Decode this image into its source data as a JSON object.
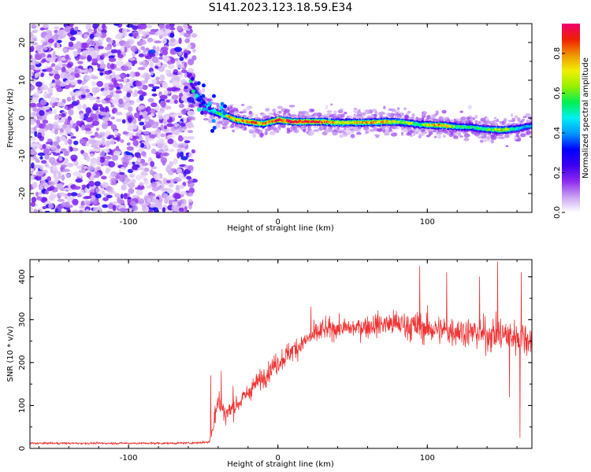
{
  "title": "S141.2023.123.18.59.E34",
  "chart_data": [
    {
      "type": "heatmap",
      "xlabel": "Height of straight line (km)",
      "ylabel": "Frequency (Hz)",
      "xlim": [
        -166,
        170
      ],
      "ylim": [
        -25,
        25
      ],
      "xticks": [
        -100,
        0,
        100
      ],
      "yticks": [
        -20,
        -10,
        0,
        10,
        20
      ],
      "colorbar": {
        "label": "Normalized spectral amplitude",
        "range": [
          0,
          0.95
        ],
        "ticks": [
          "0.0",
          "0.2",
          "0.4",
          "0.6",
          "0.8"
        ],
        "tick_values": [
          0.0,
          0.2,
          0.4,
          0.6,
          0.8
        ],
        "colormap": [
          "#ffffff",
          "#c8a0f0",
          "#8c28f0",
          "#3c00f0",
          "#0000ff",
          "#0096ff",
          "#00f0f0",
          "#00f050",
          "#96f000",
          "#f0f000",
          "#f09600",
          "#f01e00",
          "#f0006e"
        ]
      },
      "noise_region_x": [
        -166,
        -56
      ],
      "ridge": {
        "x": [
          -58,
          -55,
          -50,
          -46,
          -42,
          -38,
          -34,
          -28,
          -20,
          -10,
          0,
          10,
          20,
          30,
          40,
          50,
          60,
          70,
          80,
          90,
          95,
          100,
          110,
          120,
          130,
          140,
          150,
          160,
          170
        ],
        "f": [
          9,
          7,
          4,
          2,
          1.5,
          1,
          0.5,
          -0.5,
          -1,
          -1.5,
          -0.5,
          -1,
          -1,
          -1,
          -1.2,
          -1.2,
          -1.2,
          -1,
          -1,
          -1.5,
          -1.8,
          -1.8,
          -2,
          -2.3,
          -2.5,
          -3,
          -3.2,
          -2.8,
          -2
        ],
        "amp": [
          0.25,
          0.35,
          0.45,
          0.5,
          0.55,
          0.6,
          0.75,
          0.8,
          0.85,
          0.85,
          0.9,
          0.95,
          0.95,
          0.9,
          0.75,
          0.75,
          0.8,
          0.8,
          0.7,
          0.65,
          0.6,
          0.75,
          0.8,
          0.6,
          0.55,
          0.6,
          0.75,
          0.5,
          0.45
        ]
      }
    },
    {
      "type": "line",
      "xlabel": "Height of straight line (km)",
      "ylabel": "SNR (10 * v/v)",
      "xlim": [
        -166,
        170
      ],
      "ylim": [
        0,
        440
      ],
      "xticks": [
        -100,
        0,
        100
      ],
      "yticks": [
        0,
        100,
        200,
        300,
        400
      ],
      "color": "#f03232",
      "series": [
        {
          "x": [
            -166,
            -150,
            -130,
            -110,
            -90,
            -70,
            -55,
            -46,
            -44,
            -42,
            -40,
            -38,
            -35,
            -30,
            -25,
            -20,
            -15,
            -10,
            -5,
            0,
            5,
            10,
            15,
            20,
            25,
            30,
            40,
            50,
            60,
            70,
            80,
            90,
            100,
            110,
            120,
            130,
            140,
            150,
            160,
            170
          ],
          "mean": [
            12,
            12,
            12,
            12,
            12,
            12,
            13,
            15,
            40,
            90,
            110,
            100,
            80,
            95,
            110,
            130,
            150,
            165,
            185,
            200,
            215,
            230,
            240,
            255,
            265,
            275,
            280,
            280,
            285,
            290,
            290,
            285,
            280,
            275,
            275,
            270,
            265,
            265,
            260,
            255
          ],
          "noise": [
            4,
            4,
            4,
            4,
            4,
            4,
            4,
            5,
            40,
            50,
            55,
            50,
            40,
            35,
            35,
            35,
            35,
            35,
            40,
            40,
            40,
            40,
            40,
            40,
            40,
            40,
            35,
            35,
            40,
            45,
            50,
            55,
            55,
            55,
            55,
            55,
            60,
            65,
            65,
            65
          ],
          "spikes": [
            [
              -45,
              170
            ],
            [
              -38,
              180
            ],
            [
              -30,
              145
            ],
            [
              22,
              330
            ],
            [
              30,
              300
            ],
            [
              95,
              425
            ],
            [
              113,
              410
            ],
            [
              135,
              400
            ],
            [
              147,
              435
            ],
            [
              163,
              410
            ],
            [
              162,
              25
            ],
            [
              155,
              120
            ]
          ]
        }
      ]
    }
  ]
}
